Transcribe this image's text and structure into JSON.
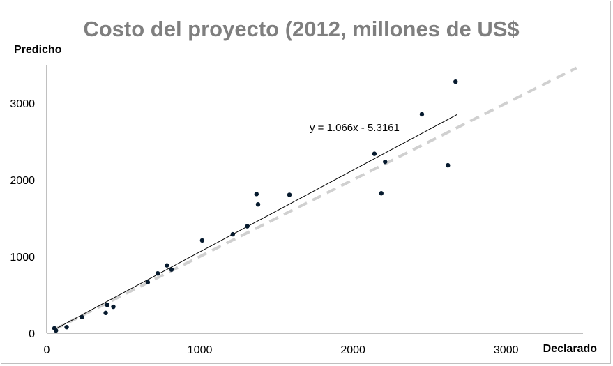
{
  "chart_data": {
    "type": "scatter",
    "title": "Costo del proyecto (2012, millones de US$",
    "xlabel": "Declarado",
    "ylabel": "Predicho",
    "xlim": [
      0,
      3500
    ],
    "ylim": [
      0,
      3500
    ],
    "x_ticks": [
      "0",
      "1000",
      "2000",
      "3000"
    ],
    "y_ticks": [
      "0",
      "1000",
      "2000",
      "3000"
    ],
    "points": [
      {
        "x": 50,
        "y": 65
      },
      {
        "x": 60,
        "y": 35
      },
      {
        "x": 130,
        "y": 80
      },
      {
        "x": 230,
        "y": 210
      },
      {
        "x": 385,
        "y": 265
      },
      {
        "x": 395,
        "y": 370
      },
      {
        "x": 435,
        "y": 345
      },
      {
        "x": 660,
        "y": 665
      },
      {
        "x": 725,
        "y": 780
      },
      {
        "x": 785,
        "y": 885
      },
      {
        "x": 815,
        "y": 830
      },
      {
        "x": 1015,
        "y": 1210
      },
      {
        "x": 1215,
        "y": 1290
      },
      {
        "x": 1310,
        "y": 1395
      },
      {
        "x": 1370,
        "y": 1815
      },
      {
        "x": 1380,
        "y": 1680
      },
      {
        "x": 1585,
        "y": 1805
      },
      {
        "x": 2140,
        "y": 2340
      },
      {
        "x": 2185,
        "y": 1825
      },
      {
        "x": 2210,
        "y": 2235
      },
      {
        "x": 2450,
        "y": 2855
      },
      {
        "x": 2620,
        "y": 2190
      },
      {
        "x": 2670,
        "y": 3280
      }
    ],
    "trendline": {
      "equation": "y = 1.066x - 5.3161",
      "slope": 1.066,
      "intercept": -5.3161,
      "x_range": [
        50,
        2680
      ],
      "color": "#000000"
    },
    "reference_line": {
      "style": "dashed",
      "color": "#d0d0d0",
      "slope": 1,
      "intercept": 0,
      "x_range": [
        50,
        3460
      ]
    },
    "point_color": "#061a2e",
    "grid": false,
    "legend": "none"
  }
}
